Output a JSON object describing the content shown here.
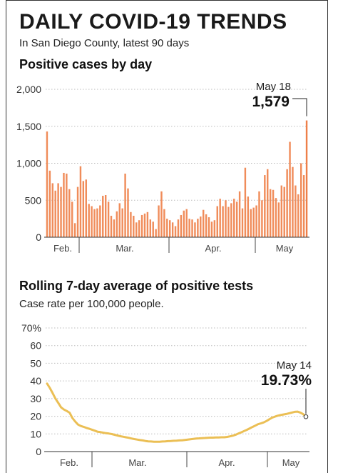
{
  "header": {
    "title": "DAILY COVID-19 TRENDS",
    "subtitle": "In San Diego County, latest 90 days"
  },
  "colors": {
    "bar": "#f08c5a",
    "bar_last": "#ee7f49",
    "line": "#ebbf55",
    "text": "#1a1a1a",
    "axis": "#555555"
  },
  "chart_data": [
    {
      "type": "bar",
      "title": "Positive cases by day",
      "subtitle": "",
      "ylim": [
        0,
        2000
      ],
      "yticks": [
        0,
        500,
        1000,
        1500,
        2000
      ],
      "ytick_labels": [
        "0",
        "500",
        "1,000",
        "1,500",
        "2,000"
      ],
      "month_labels": [
        "Feb.",
        "Mar.",
        "Apr.",
        "May"
      ],
      "grid": true,
      "values": [
        1430,
        900,
        730,
        630,
        730,
        680,
        870,
        860,
        650,
        480,
        190,
        680,
        960,
        760,
        780,
        450,
        420,
        380,
        390,
        430,
        560,
        570,
        480,
        290,
        240,
        350,
        460,
        390,
        860,
        660,
        340,
        290,
        200,
        230,
        300,
        320,
        340,
        240,
        210,
        110,
        430,
        620,
        380,
        250,
        230,
        200,
        150,
        240,
        300,
        360,
        380,
        250,
        240,
        200,
        250,
        280,
        370,
        310,
        270,
        210,
        230,
        420,
        520,
        420,
        500,
        410,
        460,
        520,
        480,
        620,
        390,
        940,
        550,
        380,
        400,
        430,
        620,
        500,
        840,
        920,
        650,
        640,
        530,
        470,
        700,
        680,
        920,
        1290,
        950,
        700,
        580,
        1000,
        840,
        1579
      ],
      "annotation": {
        "date": "May 18",
        "value_label": "1,579"
      }
    },
    {
      "type": "line",
      "title": "Rolling 7-day average of positive tests",
      "subtitle": "Case rate per 100,000 people.",
      "ylim": [
        0,
        70
      ],
      "yticks": [
        0,
        10,
        20,
        30,
        40,
        50,
        60,
        70
      ],
      "ytick_labels": [
        "0",
        "10",
        "20",
        "30",
        "40",
        "50",
        "60",
        "70%"
      ],
      "month_labels": [
        "Feb.",
        "Mar.",
        "Apr.",
        "May"
      ],
      "grid": true,
      "values": [
        38.5,
        36.0,
        33.0,
        30.0,
        27.5,
        25.0,
        23.8,
        23.0,
        22.0,
        19.0,
        17.0,
        15.3,
        14.5,
        14.0,
        13.4,
        12.9,
        12.4,
        11.8,
        11.2,
        11.0,
        10.7,
        10.4,
        10.2,
        9.9,
        9.5,
        9.1,
        8.7,
        8.4,
        8.1,
        7.8,
        7.4,
        7.1,
        6.8,
        6.5,
        6.3,
        6.0,
        5.8,
        5.7,
        5.6,
        5.6,
        5.6,
        5.7,
        5.8,
        5.9,
        6.0,
        6.1,
        6.2,
        6.3,
        6.4,
        6.6,
        6.8,
        7.0,
        7.2,
        7.4,
        7.5,
        7.6,
        7.7,
        7.8,
        7.9,
        7.9,
        8.0,
        8.0,
        8.1,
        8.1,
        8.3,
        8.6,
        9.0,
        9.5,
        10.2,
        10.9,
        11.6,
        12.3,
        13.1,
        13.9,
        14.7,
        15.5,
        16.0,
        16.5,
        17.3,
        18.3,
        19.2,
        19.8,
        20.3,
        20.7,
        21.0,
        21.3,
        21.7,
        22.1,
        22.5,
        22.6,
        22.1,
        21.2,
        19.73
      ],
      "annotation": {
        "date": "May 14",
        "value_label": "19.73%"
      }
    }
  ]
}
